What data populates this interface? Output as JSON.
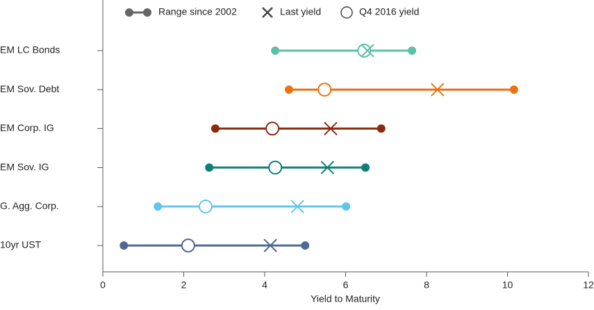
{
  "chart_data": {
    "type": "dumbbell",
    "categories": [
      "EM LC Bonds",
      "EM Sov. Debt",
      "EM Corp. IG",
      "EM Sov. IG",
      "G. Agg. Corp.",
      "10yr UST"
    ],
    "colors": [
      "#5cbfa8",
      "#ec7014",
      "#8b2a0e",
      "#0e7f74",
      "#62c6ea",
      "#4f6894"
    ],
    "range": {
      "name": "Range since 2002",
      "low": [
        4.26,
        4.6,
        2.78,
        2.63,
        1.36,
        0.52
      ],
      "high": [
        7.64,
        10.16,
        6.88,
        6.49,
        6.01,
        5.0
      ]
    },
    "last": {
      "name": "Last yield",
      "values": [
        6.54,
        8.27,
        5.63,
        5.55,
        4.81,
        4.14
      ]
    },
    "q4": {
      "name": "Q4 2016 yield",
      "values": [
        6.46,
        5.48,
        4.19,
        4.26,
        2.54,
        2.11
      ]
    },
    "legend_color": "#666666",
    "xlabel": "Yield to Maturity",
    "xlim": [
      0,
      12
    ],
    "xticks": [
      0,
      2,
      4,
      6,
      8,
      10,
      12
    ]
  }
}
